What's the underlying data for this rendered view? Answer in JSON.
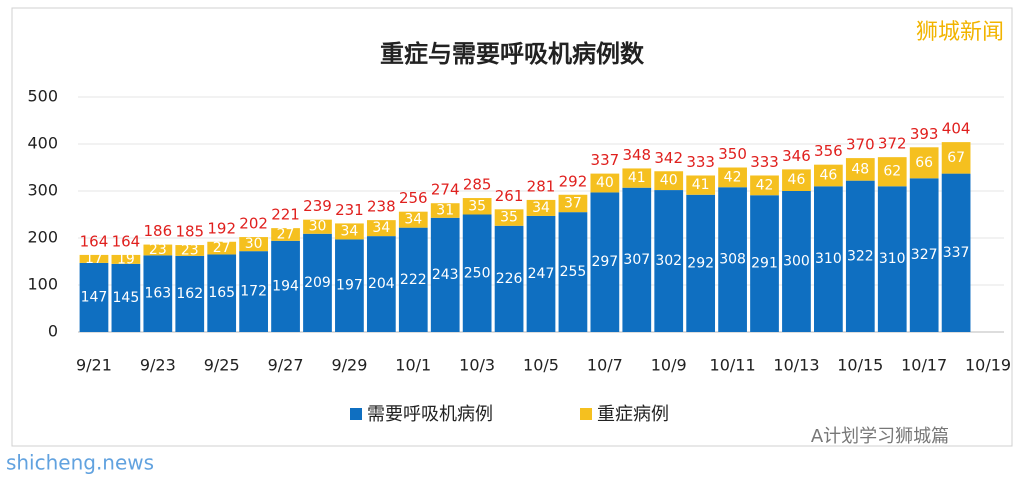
{
  "chart_data": {
    "type": "stacked_bar",
    "title": "重症与需要呼吸机病例数",
    "categories": [
      "9/21",
      null,
      "9/23",
      null,
      "9/25",
      null,
      "9/27",
      null,
      "9/29",
      null,
      "10/1",
      null,
      "10/3",
      null,
      "10/5",
      null,
      "10/7",
      null,
      "10/9",
      null,
      "10/11",
      null,
      "10/13",
      null,
      "10/15",
      null,
      "10/17",
      null,
      "10/19"
    ],
    "series": [
      {
        "name": "需要呼吸机病例",
        "color": "#0f6fc1",
        "values": [
          147,
          145,
          163,
          162,
          165,
          172,
          194,
          209,
          197,
          204,
          222,
          243,
          250,
          226,
          247,
          255,
          297,
          307,
          302,
          292,
          308,
          291,
          300,
          310,
          322,
          310,
          327,
          337,
          null
        ]
      },
      {
        "name": "重症病例",
        "color": "#f5c01f",
        "values": [
          17,
          19,
          23,
          23,
          27,
          30,
          27,
          30,
          34,
          34,
          34,
          31,
          35,
          35,
          34,
          37,
          40,
          41,
          40,
          41,
          42,
          42,
          46,
          46,
          48,
          62,
          66,
          67,
          null
        ]
      }
    ],
    "totals": [
      164,
      164,
      186,
      185,
      192,
      202,
      221,
      239,
      231,
      238,
      256,
      274,
      285,
      261,
      281,
      292,
      337,
      348,
      342,
      333,
      350,
      333,
      346,
      356,
      370,
      372,
      393,
      404,
      null
    ],
    "ylim": [
      0,
      500
    ],
    "yticks": [
      0,
      100,
      200,
      300,
      400,
      500
    ],
    "grid": true,
    "legend": "bottom",
    "watermarks": [
      "狮城新闻",
      "A计划学习狮城篇",
      "shicheng.news"
    ]
  }
}
